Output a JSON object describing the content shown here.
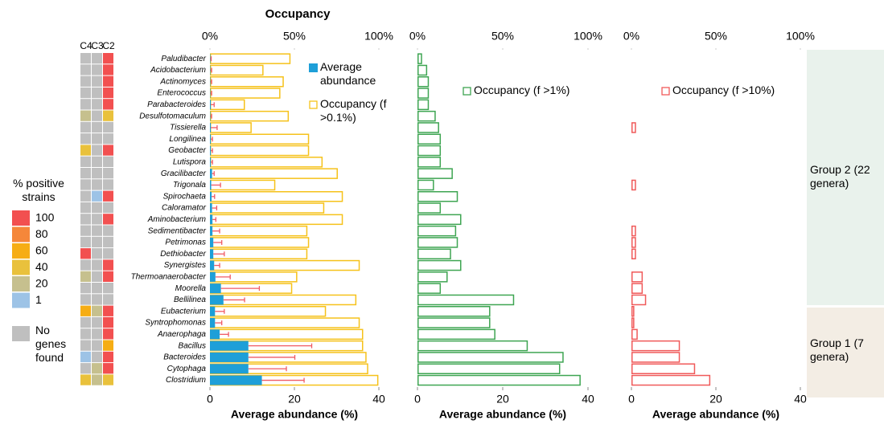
{
  "chart_data": [
    {
      "type": "heatmap",
      "columns": [
        "C4",
        "C3",
        "C2"
      ],
      "values": [
        [
          null,
          null,
          100
        ],
        [
          null,
          null,
          100
        ],
        [
          null,
          null,
          100
        ],
        [
          null,
          null,
          100
        ],
        [
          null,
          null,
          100
        ],
        [
          20,
          null,
          40
        ],
        [
          null,
          null,
          null
        ],
        [
          null,
          null,
          null
        ],
        [
          40,
          null,
          100
        ],
        [
          null,
          null,
          null
        ],
        [
          null,
          null,
          null
        ],
        [
          null,
          null,
          null
        ],
        [
          null,
          1,
          100
        ],
        [
          null,
          null,
          null
        ],
        [
          null,
          null,
          100
        ],
        [
          null,
          null,
          null
        ],
        [
          null,
          null,
          null
        ],
        [
          100,
          null,
          null
        ],
        [
          null,
          null,
          100
        ],
        [
          20,
          null,
          100
        ],
        [
          null,
          null,
          null
        ],
        [
          null,
          null,
          null
        ],
        [
          60,
          20,
          100
        ],
        [
          null,
          null,
          100
        ],
        [
          null,
          null,
          100
        ],
        [
          null,
          null,
          60
        ],
        [
          1,
          null,
          100
        ],
        [
          null,
          20,
          100
        ],
        [
          40,
          20,
          40
        ]
      ],
      "legend": {
        "title": "% positive strains",
        "levels": [
          100,
          80,
          60,
          40,
          20,
          1
        ],
        "colors": [
          "#f25050",
          "#f5873a",
          "#f6ad14",
          "#e9c13c",
          "#c6c08e",
          "#9dc3e6"
        ],
        "none_label": "No genes found",
        "none_color": "#bfbfbf"
      }
    },
    {
      "type": "bar",
      "title": "Occupancy",
      "categories": [
        "Paludibacter",
        "Acidobacterium",
        "Actinomyces",
        "Enterococcus",
        "Parabacteroides",
        "Desulfotomaculum",
        "Tissierella",
        "Longilinea",
        "Geobacter",
        "Lutispora",
        "Gracilibacter",
        "Trigonala",
        "Spirochaeta",
        "Caloramator",
        "Aminobacterium",
        "Sedimentibacter",
        "Petrimonas",
        "Dethiobacter",
        "Synergistes",
        "Thermoanaerobacter",
        "Moorella",
        "Bellilinea",
        "Eubacterium",
        "Syntrophomonas",
        "Anaerophaga",
        "Bacillus",
        "Bacteroides",
        "Cytophaga",
        "Clostridium"
      ],
      "series": [
        {
          "name": "Average abundance",
          "color": "#1e9fd8",
          "outline": false,
          "error_color": "#f05a64",
          "values": [
            0.1,
            0.1,
            0.1,
            0.1,
            0.2,
            0.1,
            0.2,
            0.2,
            0.2,
            0.2,
            0.5,
            0.3,
            0.4,
            0.5,
            0.6,
            0.6,
            0.8,
            0.8,
            1.0,
            1.3,
            2.6,
            3.2,
            1.2,
            1.2,
            2.3,
            9.1,
            9.1,
            9.1,
            12.3
          ],
          "errors": [
            0.2,
            0.3,
            0.3,
            0.3,
            0.8,
            0.3,
            1.5,
            0.4,
            0.4,
            0.4,
            0.5,
            2.2,
            0.7,
            1.1,
            0.8,
            1.7,
            2.0,
            2.6,
            1.3,
            3.5,
            9.1,
            5.0,
            2.2,
            1.6,
            2.1,
            15.0,
            11.0,
            9.0,
            10.0
          ]
        },
        {
          "name": "Occupancy (f >0.1%)",
          "color": "#f6c21a",
          "outline": true,
          "axis": "x2",
          "values": [
            47,
            31,
            43,
            41,
            20,
            46,
            24,
            58,
            58,
            66,
            75,
            38,
            78,
            67,
            78,
            57,
            58,
            57,
            88,
            51,
            48,
            86,
            68,
            88,
            90,
            90,
            92,
            93,
            99
          ]
        }
      ],
      "xlim": [
        0,
        40
      ],
      "xticks": [
        0,
        20,
        40
      ],
      "x2lim": [
        0,
        100
      ],
      "x2ticks": [
        {
          "value": 0,
          "label": "0%"
        },
        {
          "value": 50,
          "label": "50%"
        },
        {
          "value": 100,
          "label": "100%"
        }
      ],
      "xlabel": "Average abundance (%)"
    },
    {
      "type": "bar",
      "series": [
        {
          "name": "Occupancy (f >1%)",
          "color": "#3ea552",
          "outline": true,
          "axis": "x2",
          "values": [
            2,
            5,
            6,
            6,
            6,
            10,
            12,
            13,
            13,
            13,
            20,
            9,
            23,
            13,
            25,
            22,
            23,
            19,
            25,
            17,
            13,
            56,
            42,
            42,
            45,
            64,
            85,
            83,
            95
          ]
        }
      ],
      "xlim": [
        0,
        40
      ],
      "xticks": [
        0,
        20,
        40
      ],
      "x2lim": [
        0,
        100
      ],
      "x2ticks": [
        {
          "value": 0,
          "label": "0%"
        },
        {
          "value": 50,
          "label": "50%"
        },
        {
          "value": 100,
          "label": "100%"
        }
      ],
      "xlabel": "Average abundance (%)"
    },
    {
      "type": "bar",
      "series": [
        {
          "name": "Occupancy (f >10%)",
          "color": "#f05a5a",
          "outline": true,
          "axis": "x2",
          "values": [
            0,
            0,
            0,
            0,
            0,
            0,
            2,
            0,
            0,
            0,
            0,
            2,
            0,
            0,
            0,
            2,
            2,
            2,
            0,
            6,
            6,
            8,
            1,
            1,
            3,
            28,
            28,
            37,
            46
          ]
        }
      ],
      "xlim": [
        0,
        40
      ],
      "xticks": [
        0,
        20,
        40
      ],
      "x2lim": [
        0,
        100
      ],
      "x2ticks": [
        {
          "value": 0,
          "label": "0%"
        },
        {
          "value": 50,
          "label": "50%"
        },
        {
          "value": 100,
          "label": "100%"
        }
      ],
      "xlabel": "Average abundance (%)"
    }
  ],
  "groups": [
    {
      "label": "Group 2 (22 genera)"
    },
    {
      "label": "Group 1 (7 genera)"
    }
  ]
}
